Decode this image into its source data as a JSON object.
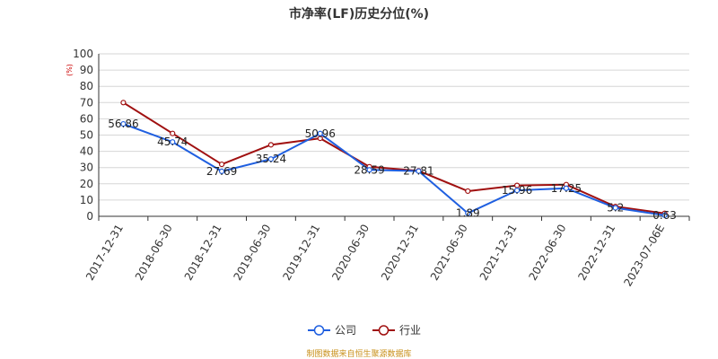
{
  "chart_data": {
    "type": "line",
    "title": "市净率(LF)历史分位(%)",
    "ylabel_unit": "(%)",
    "xlabel": "",
    "ylim": [
      0,
      100
    ],
    "yticks": [
      0,
      10,
      20,
      30,
      40,
      50,
      60,
      70,
      80,
      90,
      100
    ],
    "grid": true,
    "legend_position": "bottom",
    "categories": [
      "2017-12-31",
      "2018-06-30",
      "2018-12-31",
      "2019-06-30",
      "2019-12-31",
      "2020-06-30",
      "2020-12-31",
      "2021-06-30",
      "2021-12-31",
      "2022-06-30",
      "2022-12-31",
      "2023-07-06E"
    ],
    "series": [
      {
        "name": "公司",
        "color": "#1f5fe0",
        "values": [
          56.86,
          45.74,
          27.69,
          35.24,
          50.96,
          28.59,
          27.81,
          1.89,
          15.96,
          17.25,
          5.2,
          0.63
        ],
        "labels": [
          "56.86",
          "45.74",
          "27.69",
          "35.24",
          "50.96",
          "28.59",
          "27.81",
          "1.89",
          "15.96",
          "17.25",
          "5.2",
          "0.63"
        ]
      },
      {
        "name": "行业",
        "color": "#a01010",
        "values": [
          70.0,
          51.0,
          32.0,
          44.0,
          48.0,
          30.5,
          28.0,
          15.5,
          19.0,
          19.5,
          6.0,
          1.8
        ]
      }
    ],
    "source": "制图数据来自恒生聚源数据库"
  }
}
